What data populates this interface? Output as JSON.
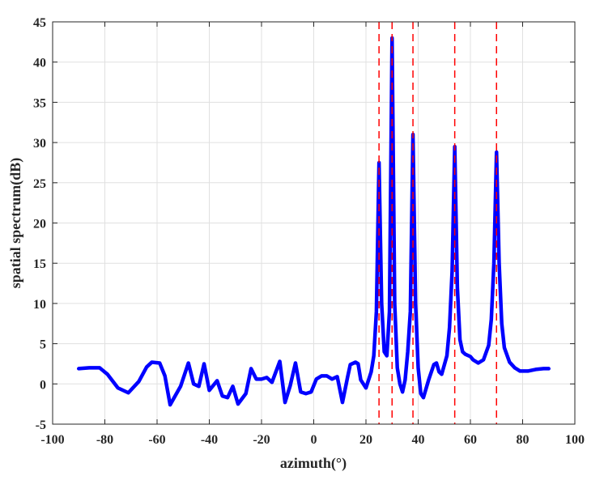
{
  "chart_data": {
    "type": "line",
    "title": "",
    "xlabel": "azimuth(°)",
    "ylabel": "spatial spectrum(dB)",
    "xlim": [
      -100,
      100
    ],
    "ylim": [
      -5,
      45
    ],
    "xticks": [
      "-100",
      "-80",
      "-60",
      "-40",
      "-20",
      "0",
      "20",
      "40",
      "60",
      "80",
      "100"
    ],
    "yticks": [
      "-5",
      "0",
      "5",
      "10",
      "15",
      "20",
      "25",
      "30",
      "35",
      "40",
      "45"
    ],
    "grid": true,
    "legend": "none",
    "series": [
      {
        "color": "#0000ff",
        "style": "solid",
        "points": [
          [
            -90,
            1.9
          ],
          [
            -86,
            2.0
          ],
          [
            -82,
            2.0
          ],
          [
            -79,
            1.2
          ],
          [
            -75,
            -0.5
          ],
          [
            -71,
            -1.1
          ],
          [
            -67,
            0.3
          ],
          [
            -64,
            2.1
          ],
          [
            -62,
            2.7
          ],
          [
            -59,
            2.6
          ],
          [
            -57,
            1.0
          ],
          [
            -55,
            -2.6
          ],
          [
            -51,
            -0.3
          ],
          [
            -48,
            2.6
          ],
          [
            -46,
            0.0
          ],
          [
            -44,
            -0.3
          ],
          [
            -42,
            2.5
          ],
          [
            -40,
            -0.8
          ],
          [
            -37,
            0.4
          ],
          [
            -35,
            -1.5
          ],
          [
            -33,
            -1.7
          ],
          [
            -31,
            -0.3
          ],
          [
            -29,
            -2.5
          ],
          [
            -26,
            -1.2
          ],
          [
            -24,
            1.9
          ],
          [
            -22,
            0.6
          ],
          [
            -20,
            0.6
          ],
          [
            -18,
            0.8
          ],
          [
            -16,
            0.2
          ],
          [
            -13,
            2.8
          ],
          [
            -11,
            -2.3
          ],
          [
            -9,
            -0.2
          ],
          [
            -7,
            2.6
          ],
          [
            -5,
            -1.0
          ],
          [
            -3,
            -1.2
          ],
          [
            -1,
            -1.0
          ],
          [
            1,
            0.6
          ],
          [
            3,
            1.0
          ],
          [
            5,
            1.0
          ],
          [
            7,
            0.6
          ],
          [
            9,
            0.9
          ],
          [
            11,
            -2.3
          ],
          [
            13,
            0.9
          ],
          [
            14,
            2.4
          ],
          [
            16,
            2.7
          ],
          [
            17,
            2.5
          ],
          [
            18,
            0.5
          ],
          [
            20,
            -0.5
          ],
          [
            22,
            1.5
          ],
          [
            23,
            3.5
          ],
          [
            24,
            9.0
          ],
          [
            25,
            27.5
          ],
          [
            26,
            10.0
          ],
          [
            27,
            4.0
          ],
          [
            28,
            3.5
          ],
          [
            29,
            9.0
          ],
          [
            30,
            43.0
          ],
          [
            31,
            10.0
          ],
          [
            32,
            2.0
          ],
          [
            33,
            0.0
          ],
          [
            34,
            -1.0
          ],
          [
            35,
            0.5
          ],
          [
            36,
            4.0
          ],
          [
            37,
            9.0
          ],
          [
            38,
            31.0
          ],
          [
            39,
            10.0
          ],
          [
            40,
            2.0
          ],
          [
            41,
            -1.2
          ],
          [
            42,
            -1.7
          ],
          [
            44,
            0.5
          ],
          [
            46,
            2.4
          ],
          [
            47,
            2.6
          ],
          [
            48,
            1.5
          ],
          [
            49,
            1.2
          ],
          [
            51,
            3.5
          ],
          [
            52,
            7.0
          ],
          [
            53,
            14.0
          ],
          [
            54,
            29.5
          ],
          [
            55,
            12.0
          ],
          [
            56,
            5.5
          ],
          [
            57,
            4.0
          ],
          [
            58,
            3.7
          ],
          [
            60,
            3.4
          ],
          [
            61,
            3.0
          ],
          [
            63,
            2.6
          ],
          [
            65,
            3.0
          ],
          [
            67,
            4.8
          ],
          [
            68,
            8.0
          ],
          [
            69,
            15.0
          ],
          [
            70,
            28.8
          ],
          [
            71,
            15.0
          ],
          [
            72,
            7.5
          ],
          [
            73,
            4.5
          ],
          [
            75,
            2.7
          ],
          [
            77,
            2.0
          ],
          [
            79,
            1.6
          ],
          [
            82,
            1.6
          ],
          [
            85,
            1.8
          ],
          [
            88,
            1.9
          ],
          [
            90,
            1.9
          ]
        ]
      }
    ],
    "reference_lines": {
      "orientation": "vertical",
      "color": "#ff0000",
      "style": "dashed",
      "x": [
        25,
        30,
        38,
        54,
        70
      ]
    }
  }
}
